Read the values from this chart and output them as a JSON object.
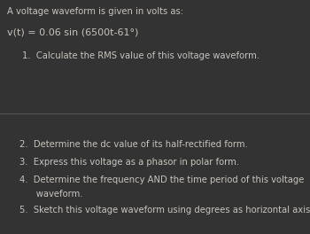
{
  "background_color": "#333333",
  "text_color": "#c8c4be",
  "divider_color": "#555555",
  "header_text": "A voltage waveform is given in volts as:",
  "equation_text": "v(t) = 0.06 sin (6500t-61°)",
  "item1": "1.  Calculate the RMS value of this voltage waveform.",
  "item2": "2.  Determine the dc value of its half-rectified form.",
  "item3": "3.  Express this voltage as a phasor in polar form.",
  "item4_line1": "4.  Determine the frequency AND the time period of this voltage",
  "item4_line2": "      waveform.",
  "item5": "5.  Sketch this voltage waveform using degrees as horizontal axis.",
  "font_size_header": 7.2,
  "font_size_equation": 8.0,
  "font_size_items": 7.2
}
